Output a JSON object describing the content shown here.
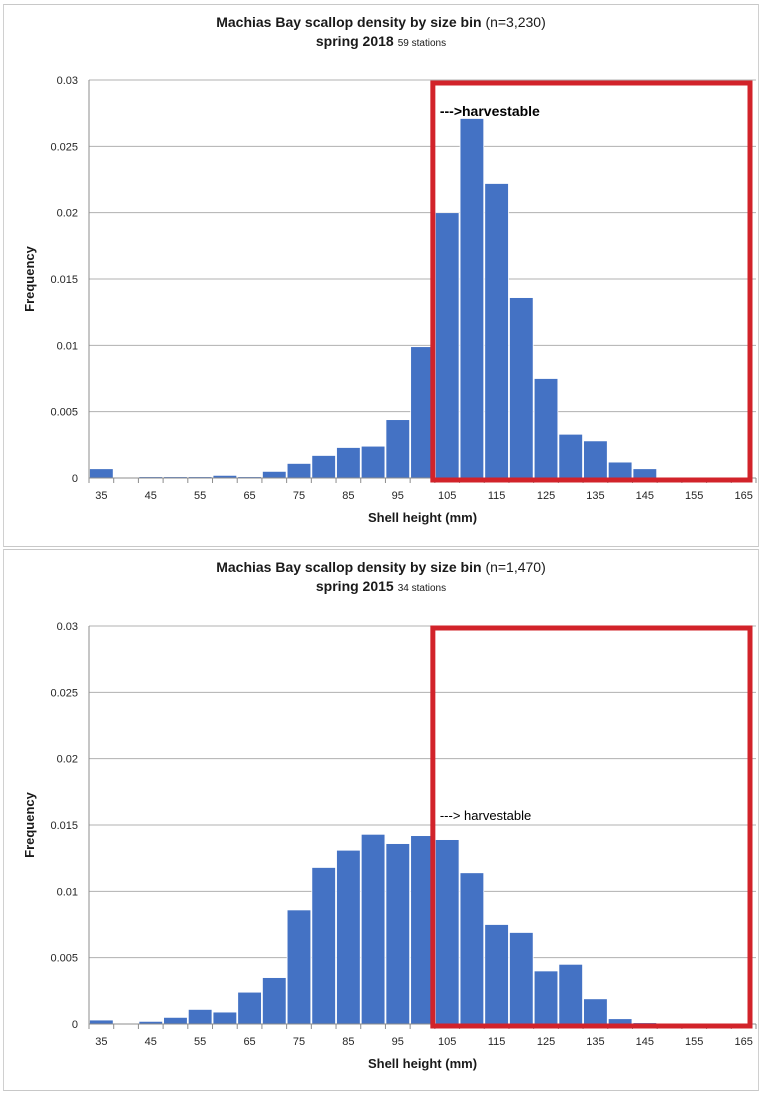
{
  "colors": {
    "bar": "#4472C4",
    "bar_edge": "#ffffff",
    "harvest_box": "#D2232A",
    "grid": "#b0b0b0",
    "axis": "#8c8c8c",
    "text": "#1a1a1a"
  },
  "chart_data": [
    {
      "type": "bar",
      "title_main": "Machias Bay scallop density by size bin",
      "title_count": "(n=3,230)",
      "subtitle_main": "spring 2018",
      "subtitle_stations": "59 stations",
      "xlabel": "Shell height (mm)",
      "ylabel": "Frequency",
      "ylim": [
        0,
        0.03
      ],
      "yticks": [
        0,
        0.005,
        0.01,
        0.015,
        0.02,
        0.025,
        0.03
      ],
      "ytick_labels": [
        "0",
        "0.005",
        "0.01",
        "0.015",
        "0.02",
        "0.025",
        "0.03"
      ],
      "xtick_labels": [
        "35",
        "45",
        "55",
        "65",
        "75",
        "85",
        "95",
        "105",
        "115",
        "125",
        "135",
        "145",
        "155",
        "165"
      ],
      "bins": [
        35,
        40,
        45,
        50,
        55,
        60,
        65,
        70,
        75,
        80,
        85,
        90,
        95,
        100,
        105,
        110,
        115,
        120,
        125,
        130,
        135,
        140,
        145,
        150,
        155,
        160,
        165
      ],
      "values": [
        0.0007,
        0.0,
        0.0001,
        0.0001,
        0.0001,
        0.0002,
        0.0001,
        0.0005,
        0.0011,
        0.0017,
        0.0023,
        0.0024,
        0.0044,
        0.0099,
        0.02,
        0.0271,
        0.0222,
        0.0136,
        0.0075,
        0.0033,
        0.0028,
        0.0012,
        0.0007,
        0.0,
        0.0,
        0.0,
        0.0
      ],
      "annotation": "--->harvestable",
      "harvest_from": 105,
      "grid": true,
      "legend": "none"
    },
    {
      "type": "bar",
      "title_main": "Machias Bay scallop density by size bin",
      "title_count": "(n=1,470)",
      "subtitle_main": "spring 2015",
      "subtitle_stations": "34 stations",
      "xlabel": "Shell height (mm)",
      "ylabel": "Frequency",
      "ylim": [
        0,
        0.03
      ],
      "yticks": [
        0,
        0.005,
        0.01,
        0.015,
        0.02,
        0.025,
        0.03
      ],
      "ytick_labels": [
        "0",
        "0.005",
        "0.01",
        "0.015",
        "0.02",
        "0.025",
        "0.03"
      ],
      "xtick_labels": [
        "35",
        "45",
        "55",
        "65",
        "75",
        "85",
        "95",
        "105",
        "115",
        "125",
        "135",
        "145",
        "155",
        "165"
      ],
      "bins": [
        35,
        40,
        45,
        50,
        55,
        60,
        65,
        70,
        75,
        80,
        85,
        90,
        95,
        100,
        105,
        110,
        115,
        120,
        125,
        130,
        135,
        140,
        145,
        150,
        155,
        160,
        165
      ],
      "values": [
        0.0003,
        0.0,
        0.0002,
        0.0005,
        0.0011,
        0.0009,
        0.0024,
        0.0035,
        0.0086,
        0.0118,
        0.0131,
        0.0143,
        0.0136,
        0.0142,
        0.0139,
        0.0114,
        0.0075,
        0.0069,
        0.004,
        0.0045,
        0.0019,
        0.0004,
        0.0001,
        0.0,
        0.0,
        0.0,
        0.0
      ],
      "annotation": "---> harvestable",
      "harvest_from": 105,
      "grid": true,
      "legend": "none"
    }
  ]
}
